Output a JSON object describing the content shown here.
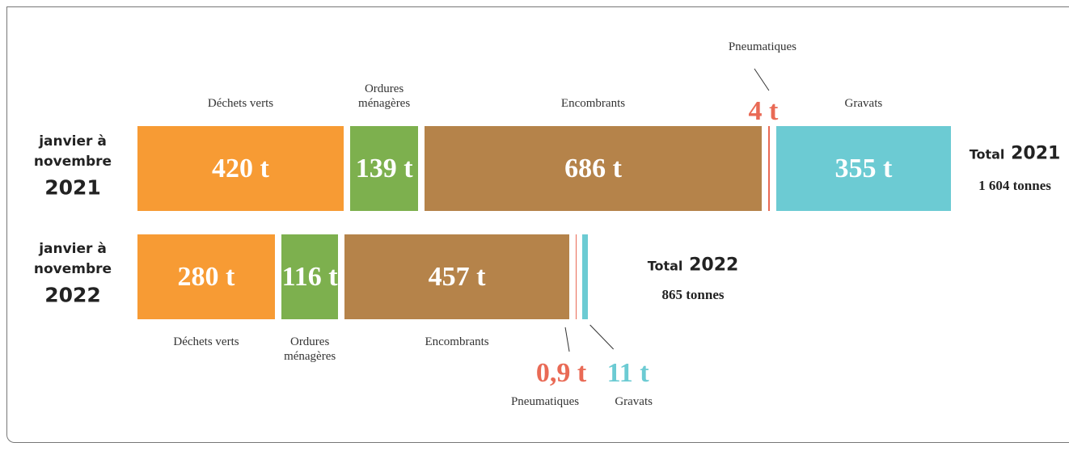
{
  "chart_data": {
    "type": "bar",
    "orientation": "horizontal",
    "stacked": true,
    "period_lines": [
      "janvier à",
      "novembre"
    ],
    "categories": [
      "2021",
      "2022"
    ],
    "series": [
      {
        "name": "Déchets verts",
        "color": "#f79b34",
        "values": [
          420,
          280
        ],
        "value_labels": [
          "420 t",
          "280 t"
        ]
      },
      {
        "name": "Ordures ménagères",
        "color": "#7db04e",
        "values": [
          139,
          116
        ],
        "value_labels": [
          "139 t",
          "116 t"
        ]
      },
      {
        "name": "Encombrants",
        "color": "#b5834a",
        "values": [
          686,
          457
        ],
        "value_labels": [
          "686 t",
          "457 t"
        ]
      },
      {
        "name": "Pneumatiques",
        "color": "#e96a55",
        "values": [
          4,
          0.9
        ],
        "value_labels": [
          "4 t",
          "0,9 t"
        ]
      },
      {
        "name": "Gravats",
        "color": "#6ccbd3",
        "values": [
          355,
          11
        ],
        "value_labels": [
          "355 t",
          "11 t"
        ]
      }
    ],
    "total_word": "Total",
    "totals": [
      1604,
      865
    ],
    "total_labels": [
      "1 604 tonnes",
      "865 tonnes"
    ]
  }
}
